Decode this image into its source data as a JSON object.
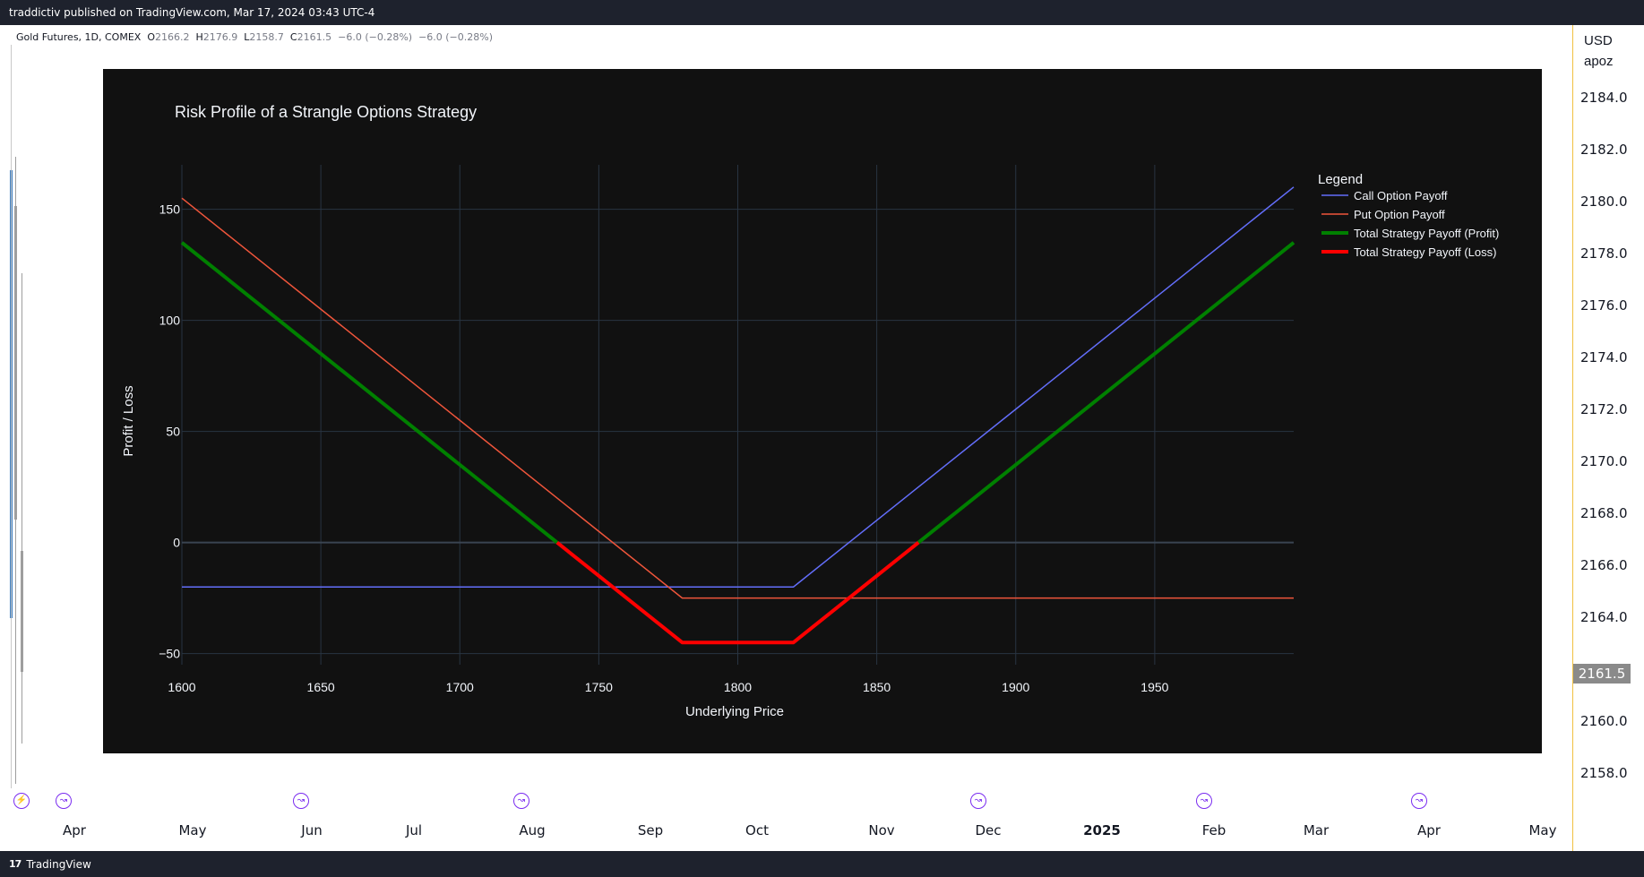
{
  "header": {
    "text": "traddictiv published on TradingView.com, Mar 17, 2024 03:43 UTC-4"
  },
  "symbol": {
    "name": "Gold Futures, 1D, COMEX",
    "o_label": "O",
    "o": "2166.2",
    "h_label": "H",
    "h": "2176.9",
    "l_label": "L",
    "l": "2158.7",
    "c_label": "C",
    "c": "2161.5",
    "change": "−6.0 (−0.28%)",
    "change2": "−6.0 (−0.28%)"
  },
  "price_axis": {
    "currency": "USD",
    "unit": "apoz",
    "labels": [
      "2184.0",
      "2182.0",
      "2180.0",
      "2178.0",
      "2176.0",
      "2174.0",
      "2172.0",
      "2170.0",
      "2168.0",
      "2166.0",
      "2164.0",
      "2162.0",
      "2160.0",
      "2158.0"
    ],
    "current": "2161.5"
  },
  "time_axis": {
    "labels": [
      "Apr",
      "May",
      "Jun",
      "Jul",
      "Aug",
      "Sep",
      "Oct",
      "Nov",
      "Dec",
      "2025",
      "Feb",
      "Mar",
      "Apr",
      "May"
    ]
  },
  "footer": {
    "brand": "TradingView",
    "logo_text": "17"
  },
  "colors": {
    "call": "#636efa",
    "put": "#ef553b",
    "profit": "#008000",
    "loss": "#ff0000",
    "plot_bg": "#111111",
    "event_icon": "#7a2cf0"
  },
  "chart_data": {
    "type": "line",
    "title": "Risk Profile of a Strangle Options Strategy",
    "xlabel": "Underlying Price",
    "ylabel": "Profit / Loss",
    "xlim": [
      1600,
      2000
    ],
    "ylim": [
      -55,
      170
    ],
    "x_ticks": [
      1600,
      1650,
      1700,
      1750,
      1800,
      1850,
      1900,
      1950
    ],
    "y_ticks": [
      -50,
      0,
      50,
      100,
      150
    ],
    "y_tick_labels": [
      "−50",
      "0",
      "50",
      "100",
      "150"
    ],
    "grid": true,
    "legend_title": "Legend",
    "legend_position": "top-right",
    "series": [
      {
        "name": "Call Option Payoff",
        "color": "#636efa",
        "width": 1.5,
        "points": [
          [
            1600,
            -20
          ],
          [
            1820,
            -20
          ],
          [
            2000,
            160
          ]
        ]
      },
      {
        "name": "Put Option Payoff",
        "color": "#ef553b",
        "width": 1.5,
        "points": [
          [
            1600,
            155
          ],
          [
            1780,
            -25
          ],
          [
            2000,
            -25
          ]
        ]
      },
      {
        "name": "Total Strategy Payoff (Profit)",
        "color": "#008000",
        "width": 4,
        "segments": [
          [
            [
              1600,
              135
            ],
            [
              1735,
              0
            ]
          ],
          [
            [
              1865,
              0
            ],
            [
              2000,
              135
            ]
          ]
        ]
      },
      {
        "name": "Total Strategy Payoff (Loss)",
        "color": "#ff0000",
        "width": 4,
        "segments": [
          [
            [
              1735,
              0
            ],
            [
              1780,
              -45
            ],
            [
              1820,
              -45
            ],
            [
              1865,
              0
            ]
          ]
        ]
      }
    ]
  }
}
